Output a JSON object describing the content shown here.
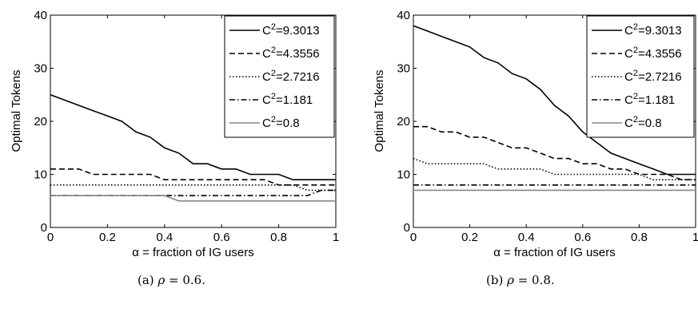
{
  "chart_data": [
    {
      "type": "line",
      "xlabel": "α = fraction of IG users",
      "ylabel": "Optimal Tokens",
      "xlim": [
        0,
        1
      ],
      "ylim": [
        0,
        40
      ],
      "xticks": [
        "0",
        "0.2",
        "0.4",
        "0.6",
        "0.8",
        "1"
      ],
      "yticks": [
        "0",
        "10",
        "20",
        "30",
        "40"
      ],
      "legend": "top-right",
      "grid": false,
      "x": [
        0.0,
        0.05,
        0.1,
        0.15,
        0.2,
        0.25,
        0.3,
        0.35,
        0.4,
        0.45,
        0.5,
        0.55,
        0.6,
        0.65,
        0.7,
        0.75,
        0.8,
        0.85,
        0.9,
        0.95,
        1.0
      ],
      "series": [
        {
          "name": "C²=9.3013",
          "style": "solid",
          "color": "#000000",
          "values": [
            25,
            24,
            23,
            22,
            21,
            20,
            18,
            17,
            15,
            14,
            12,
            12,
            11,
            11,
            10,
            10,
            10,
            9,
            9,
            9,
            9
          ]
        },
        {
          "name": "C²=4.3556",
          "style": "dashed",
          "color": "#000000",
          "values": [
            11,
            11,
            11,
            10,
            10,
            10,
            10,
            10,
            9,
            9,
            9,
            9,
            9,
            9,
            9,
            9,
            8,
            8,
            8,
            8,
            8
          ]
        },
        {
          "name": "C²=2.7216",
          "style": "dotted",
          "color": "#000000",
          "values": [
            8,
            8,
            8,
            8,
            8,
            8,
            8,
            8,
            8,
            8,
            8,
            8,
            8,
            8,
            8,
            8,
            8,
            8,
            7,
            7,
            7
          ]
        },
        {
          "name": "C²=1.181",
          "style": "dashdot",
          "color": "#000000",
          "values": [
            6,
            6,
            6,
            6,
            6,
            6,
            6,
            6,
            6,
            6,
            6,
            6,
            6,
            6,
            6,
            6,
            6,
            6,
            6,
            7,
            7
          ]
        },
        {
          "name": "C²=0.8",
          "style": "solid",
          "color": "#888888",
          "values": [
            6,
            6,
            6,
            6,
            6,
            6,
            6,
            6,
            6,
            5,
            5,
            5,
            5,
            5,
            5,
            5,
            5,
            5,
            5,
            5,
            5
          ]
        }
      ]
    },
    {
      "type": "line",
      "xlabel": "α = fraction of IG users",
      "ylabel": "Optimal Tokens",
      "xlim": [
        0,
        1
      ],
      "ylim": [
        0,
        40
      ],
      "xticks": [
        "0",
        "0.2",
        "0.4",
        "0.6",
        "0.8",
        "1"
      ],
      "yticks": [
        "0",
        "10",
        "20",
        "30",
        "40"
      ],
      "legend": "top-right",
      "grid": false,
      "x": [
        0.0,
        0.05,
        0.1,
        0.15,
        0.2,
        0.25,
        0.3,
        0.35,
        0.4,
        0.45,
        0.5,
        0.55,
        0.6,
        0.65,
        0.7,
        0.75,
        0.8,
        0.85,
        0.9,
        0.95,
        1.0
      ],
      "series": [
        {
          "name": "C²=9.3013",
          "style": "solid",
          "color": "#000000",
          "values": [
            38,
            37,
            36,
            35,
            34,
            32,
            31,
            29,
            28,
            26,
            23,
            21,
            18,
            16,
            14,
            13,
            12,
            11,
            10,
            10,
            10
          ]
        },
        {
          "name": "C²=4.3556",
          "style": "dashed",
          "color": "#000000",
          "values": [
            19,
            19,
            18,
            18,
            17,
            17,
            16,
            15,
            15,
            14,
            13,
            13,
            12,
            12,
            11,
            11,
            10,
            10,
            10,
            9,
            9
          ]
        },
        {
          "name": "C²=2.7216",
          "style": "dotted",
          "color": "#000000",
          "values": [
            13,
            12,
            12,
            12,
            12,
            12,
            11,
            11,
            11,
            11,
            10,
            10,
            10,
            10,
            10,
            10,
            10,
            9,
            9,
            9,
            9
          ]
        },
        {
          "name": "C²=1.181",
          "style": "dashdot",
          "color": "#000000",
          "values": [
            8,
            8,
            8,
            8,
            8,
            8,
            8,
            8,
            8,
            8,
            8,
            8,
            8,
            8,
            8,
            8,
            8,
            8,
            8,
            8,
            8
          ]
        },
        {
          "name": "C²=0.8",
          "style": "solid",
          "color": "#888888",
          "values": [
            7,
            7,
            7,
            7,
            7,
            7,
            7,
            7,
            7,
            7,
            7,
            7,
            7,
            7,
            7,
            7,
            7,
            7,
            7,
            7,
            7
          ]
        }
      ]
    }
  ],
  "captions": [
    {
      "label": "(a)",
      "rho_symbol": "ρ",
      "rest": " = 0.6."
    },
    {
      "label": "(b)",
      "rho_symbol": "ρ",
      "rest": " = 0.8."
    }
  ]
}
